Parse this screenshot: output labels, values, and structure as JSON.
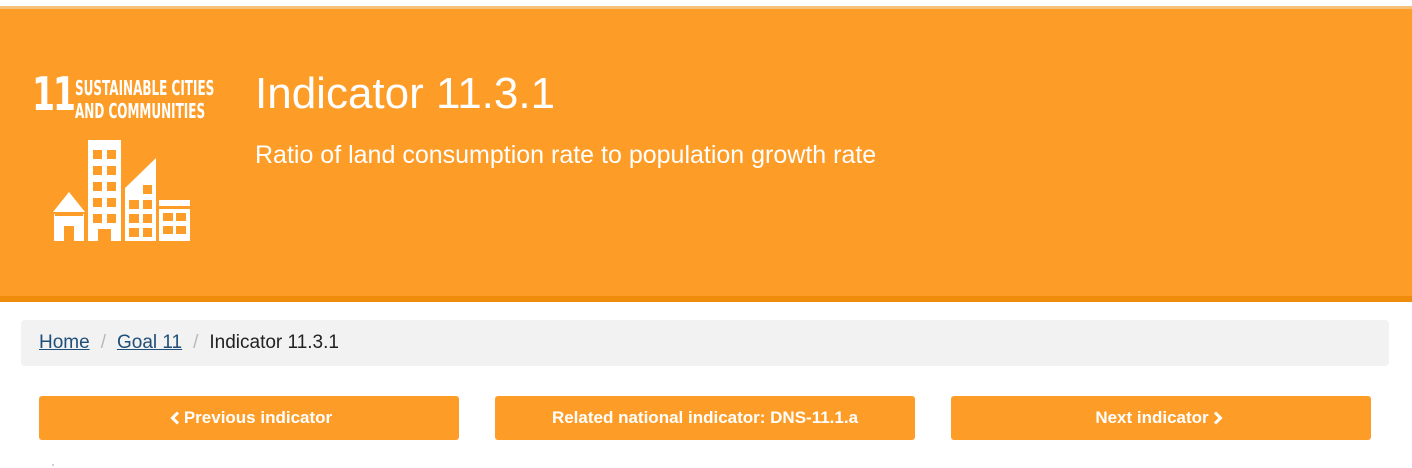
{
  "banner": {
    "goal_number": "11",
    "goal_name_line1": "SUSTAINABLE CITIES",
    "goal_name_line2": "AND COMMUNITIES",
    "title": "Indicator 11.3.1",
    "subtitle": "Ratio of land consumption rate to population growth rate",
    "background_color": "#fd9d28",
    "icon": "city-buildings-icon"
  },
  "breadcrumb": {
    "items": [
      {
        "label": "Home"
      },
      {
        "label": "Goal 11"
      },
      {
        "label": "Indicator 11.3.1"
      }
    ]
  },
  "nav": {
    "previous_label": "Previous indicator",
    "related_label": "Related national indicator: DNS-11.1.a",
    "next_label": "Next indicator",
    "previous_icon": "chevron-left-icon",
    "next_icon": "chevron-right-icon"
  }
}
